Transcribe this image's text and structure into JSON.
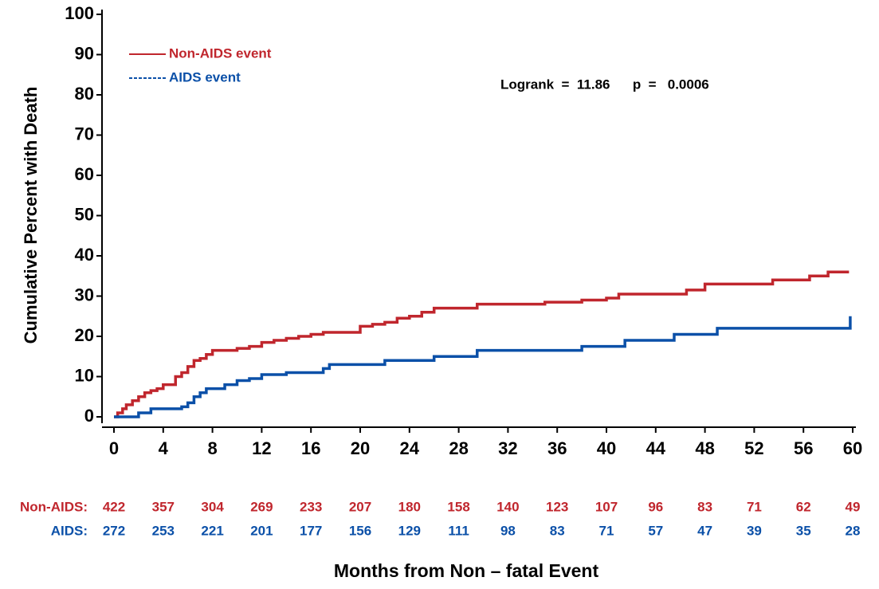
{
  "chart_data": {
    "type": "step",
    "y_label": "Cumulative Percent with Death",
    "x_label": "Months from Non – fatal Event",
    "annotation": "Logrank  =  11.86      p  =   0.0006",
    "xlim": [
      0,
      60
    ],
    "ylim": [
      0,
      100
    ],
    "xticks": [
      0,
      4,
      8,
      12,
      16,
      20,
      24,
      28,
      32,
      36,
      40,
      44,
      48,
      52,
      56,
      60
    ],
    "yticks": [
      0,
      10,
      20,
      30,
      40,
      50,
      60,
      70,
      80,
      90,
      100
    ],
    "legend": "top-left",
    "series": [
      {
        "name": "Non-AIDS event",
        "color": "#c0262d",
        "dash": false,
        "x": [
          0,
          0.3,
          0.7,
          1,
          1.5,
          2,
          2.5,
          3,
          3.5,
          4,
          5,
          5.5,
          6,
          6.5,
          7,
          7.5,
          8,
          10,
          11,
          12,
          13,
          14,
          15,
          16,
          17,
          20,
          21,
          22,
          23,
          24,
          25,
          26,
          29.5,
          35,
          38,
          40,
          41,
          46.5,
          48,
          53.5,
          56.5,
          58,
          59.7
        ],
        "values": [
          0,
          1,
          2,
          3,
          4,
          5,
          6,
          6.5,
          7,
          8,
          10,
          11,
          12.5,
          14,
          14.5,
          15.5,
          16.5,
          17,
          17.5,
          18.5,
          19,
          19.5,
          20,
          20.5,
          21,
          22.5,
          23,
          23.5,
          24.5,
          25,
          26,
          27,
          28,
          28.5,
          29,
          29.5,
          30.5,
          31.5,
          33,
          34,
          35,
          36,
          36
        ]
      },
      {
        "name": "AIDS event",
        "color": "#0b50a8",
        "dash": true,
        "x": [
          0,
          2,
          3,
          5.5,
          6,
          6.5,
          7,
          7.5,
          9,
          10,
          11,
          12,
          14,
          17,
          17.5,
          22,
          26,
          29.5,
          38,
          41.5,
          45.5,
          49,
          59.6,
          59.8
        ],
        "values": [
          0,
          1,
          2,
          2.5,
          3.5,
          5,
          6,
          7,
          8,
          9,
          9.5,
          10.5,
          11,
          12,
          13,
          14,
          15,
          16.5,
          17.5,
          19,
          20.5,
          22,
          22,
          25
        ]
      }
    ],
    "at_risk": {
      "months": [
        0,
        4,
        8,
        12,
        16,
        20,
        24,
        28,
        32,
        36,
        40,
        44,
        48,
        52,
        56,
        60
      ],
      "rows": [
        {
          "label": "Non-AIDS:",
          "color": "#c0262d",
          "values": [
            422,
            357,
            304,
            269,
            233,
            207,
            180,
            158,
            140,
            123,
            107,
            96,
            83,
            71,
            62,
            49
          ]
        },
        {
          "label": "AIDS:",
          "color": "#0b50a8",
          "values": [
            272,
            253,
            221,
            201,
            177,
            156,
            129,
            111,
            98,
            83,
            71,
            57,
            47,
            39,
            35,
            28
          ]
        }
      ]
    }
  }
}
